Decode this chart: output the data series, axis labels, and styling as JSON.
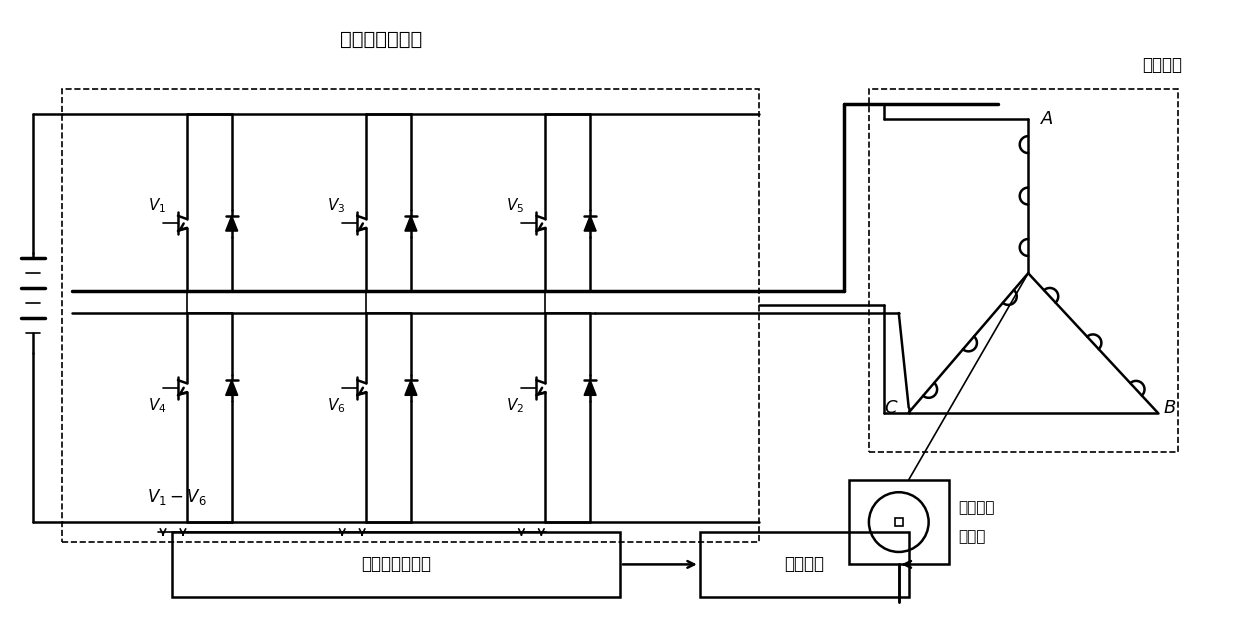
{
  "title": "主功率逆变电路",
  "motor_label": "电机本体",
  "sensor_label_1": "转子位置",
  "sensor_label_2": "传感器",
  "drive_label": "隔离与驱动电路",
  "control_label": "控制电路",
  "signal_label": "$V_1 - V_6$",
  "upper_labels": [
    "$V_1$",
    "$V_3$",
    "$V_5$"
  ],
  "lower_labels": [
    "$V_4$",
    "$V_6$",
    "$V_2$"
  ],
  "phase_labels": [
    "$A$",
    "$B$",
    "$C$"
  ],
  "line_color": "#000000",
  "bg_color": "#ffffff"
}
